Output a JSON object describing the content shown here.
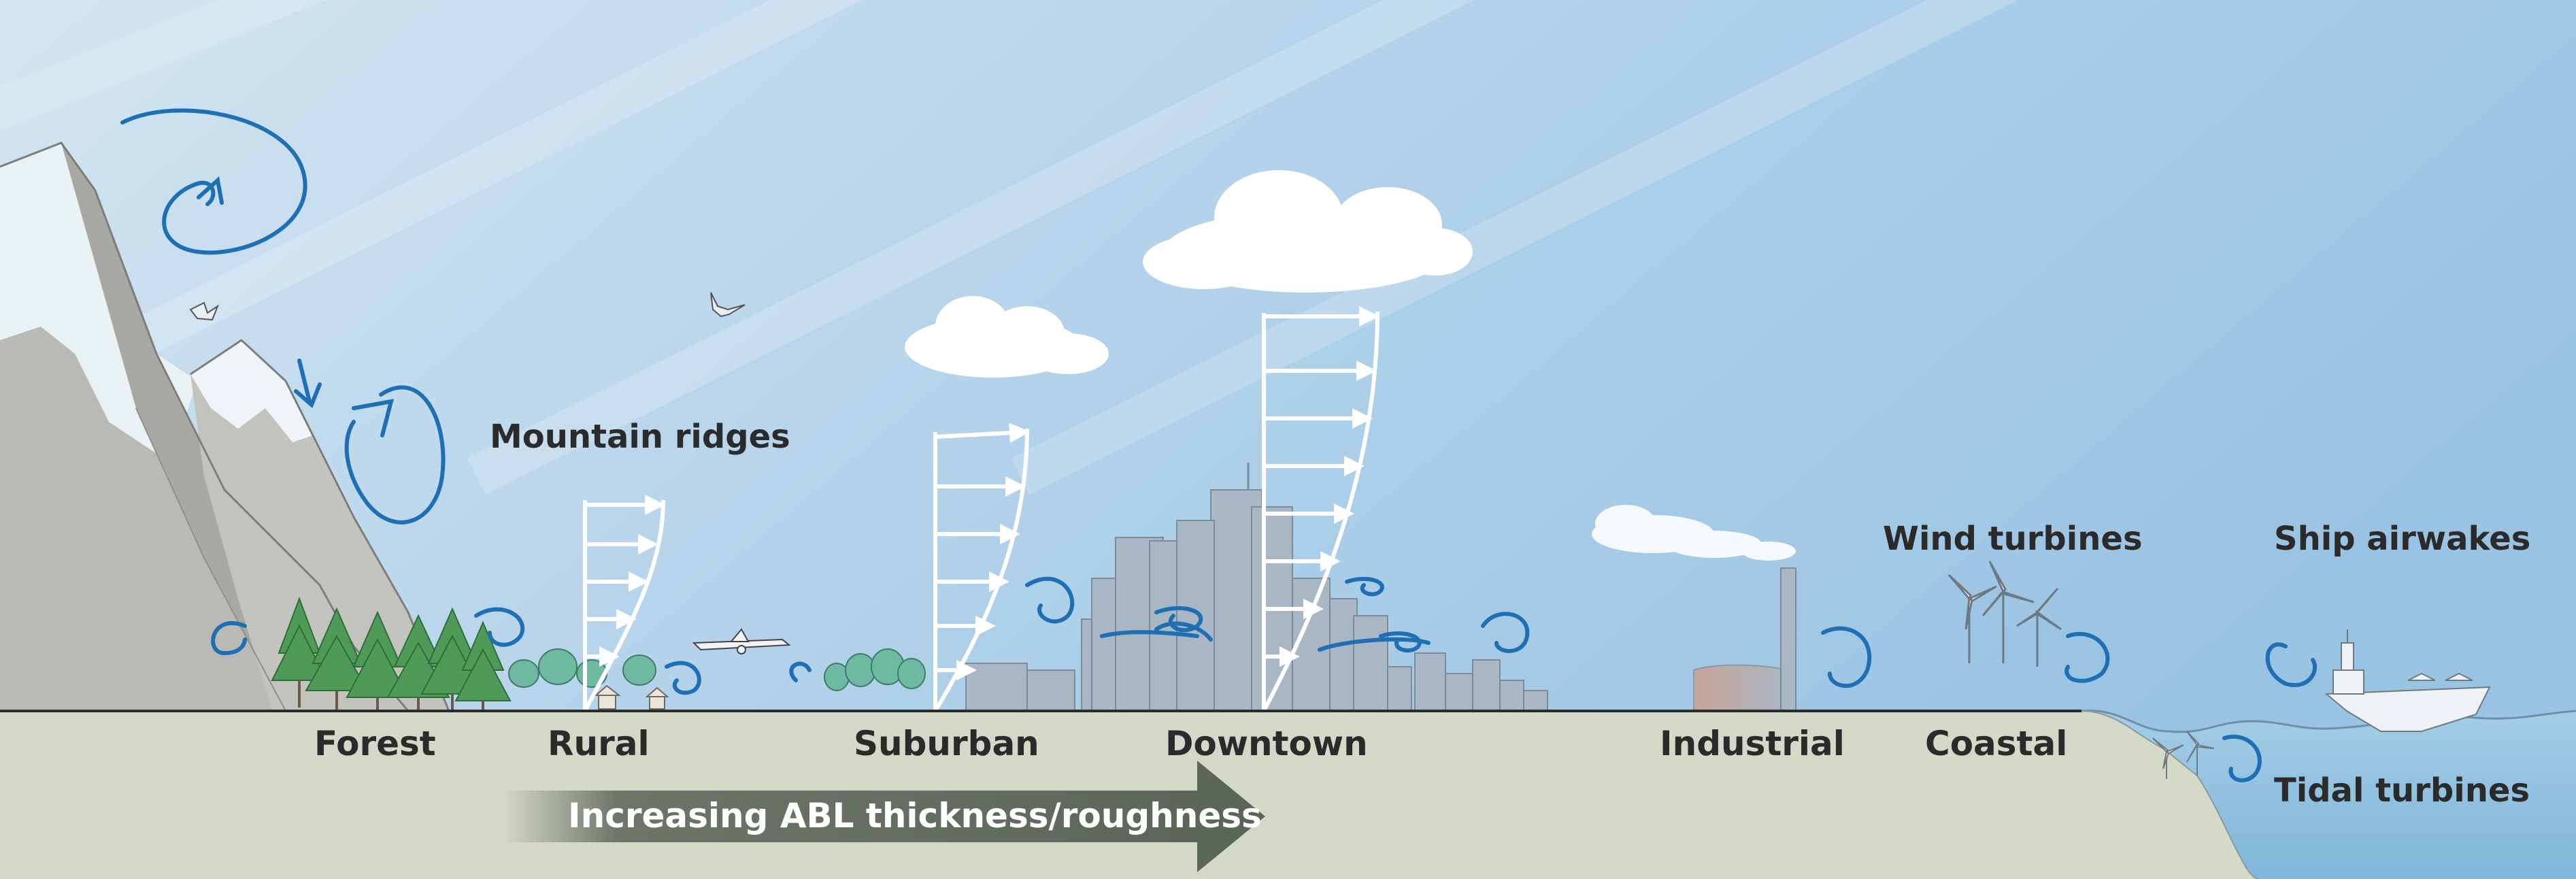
{
  "labels": {
    "mountain_ridges": "Mountain ridges",
    "forest": "Forest",
    "rural": "Rural",
    "suburban": "Suburban",
    "downtown": "Downtown",
    "industrial": "Industrial",
    "coastal": "Coastal",
    "wind_turbines": "Wind turbines",
    "ship_airwakes": "Ship airwakes",
    "tidal_turbines": "Tidal turbines"
  },
  "trend_arrow": {
    "label": "Increasing ABL thickness/roughness"
  },
  "colors": {
    "sky_top": "#c9dfee",
    "sky": "#a9cbe6",
    "ground": "#d4d8c6",
    "water": "#8fc0de",
    "vortex": "#1f6fb4",
    "trend_arrow": "#5b6459",
    "tree": "#4f9a58",
    "building": "#a8b7c3"
  }
}
